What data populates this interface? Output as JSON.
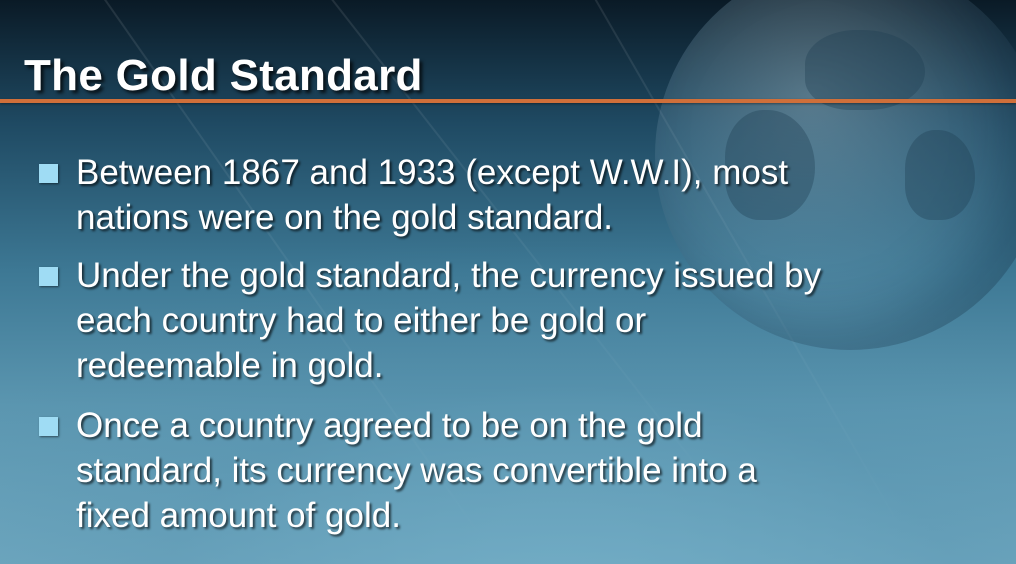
{
  "slide": {
    "title": "The Gold Standard",
    "bullets": [
      {
        "text": "Between 1867 and 1933 (except W.W.I), most\nnations  were on the gold standard."
      },
      {
        "text": "Under the gold standard, the currency issued by\neach country had to either be gold or\nredeemable in gold."
      },
      {
        "text": "Once a country agreed to be on the gold\nstandard, its currency was convertible into a\nfixed amount of gold."
      }
    ]
  },
  "colors": {
    "accent_rule": "#cf6f3a",
    "bullet_marker": "#9fdcf4",
    "text": "#ffffff",
    "background": "#3d7894"
  },
  "icons": {
    "bullet": "square-bullet-icon",
    "background": "globe-icon"
  }
}
